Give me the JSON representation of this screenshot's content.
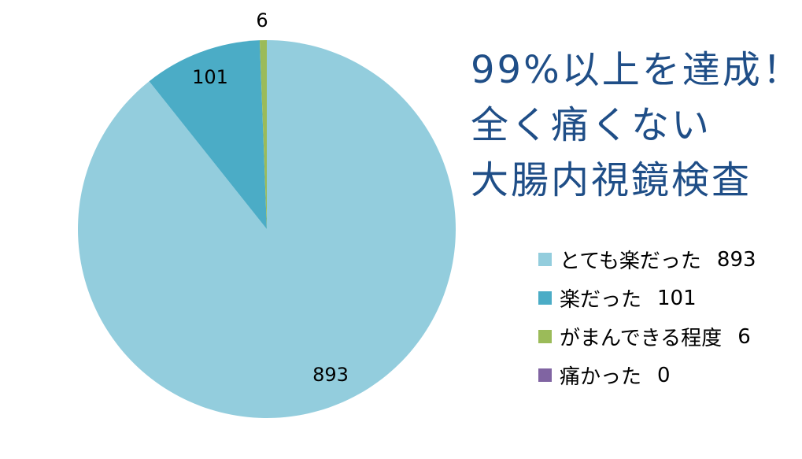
{
  "title": {
    "lines": [
      "99%以上を達成！",
      "全く痛くない",
      "大腸内視鏡検査"
    ],
    "color": "#1F4E87"
  },
  "chart_data": {
    "type": "pie",
    "title": "99%以上を達成！全く痛くない大腸内視鏡検査",
    "categories": [
      "とても楽だった",
      "楽だった",
      "がまんできる程度",
      "痛かった"
    ],
    "values": [
      893,
      101,
      6,
      0
    ],
    "colors": [
      "#93CDDD",
      "#4BACC6",
      "#9BBB59",
      "#8064A2"
    ],
    "data_labels": [
      "893",
      "101",
      "6",
      ""
    ],
    "start_angle": "12 o'clock",
    "direction": "clockwise",
    "legend_position": "right",
    "legend_shows_values": true
  },
  "legend": {
    "items": [
      {
        "label": "とても楽だった",
        "value": "893",
        "color": "#93CDDD"
      },
      {
        "label": "楽だった",
        "value": "101",
        "color": "#4BACC6"
      },
      {
        "label": "がまんできる程度",
        "value": "6",
        "color": "#9BBB59"
      },
      {
        "label": "痛かった",
        "value": "0",
        "color": "#8064A2"
      }
    ]
  },
  "slice_labels": {
    "s0": "893",
    "s1": "101",
    "s2": "6"
  }
}
